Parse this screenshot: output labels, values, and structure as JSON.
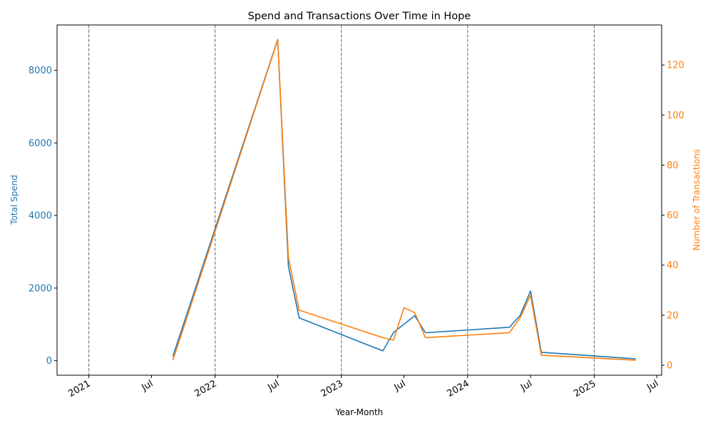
{
  "chart_data": {
    "type": "line",
    "title": "Spend and Transactions Over Time in Hope",
    "xlabel": "Year-Month",
    "ylabel_left": "Total Spend",
    "ylabel_right": "Number of Transactions",
    "xlim": [
      "2020-10-01",
      "2025-07-15"
    ],
    "ylim_left": [
      -400,
      9250
    ],
    "ylim_right": [
      -4,
      136
    ],
    "yticks_left": [
      0,
      2000,
      4000,
      6000,
      8000
    ],
    "yticks_right": [
      0,
      20,
      40,
      60,
      80,
      100,
      120
    ],
    "xticks": [
      {
        "date": "2021-01-01",
        "label": "2021"
      },
      {
        "date": "2021-07-01",
        "label": "Jul"
      },
      {
        "date": "2022-01-01",
        "label": "2022"
      },
      {
        "date": "2022-07-01",
        "label": "Jul"
      },
      {
        "date": "2023-01-01",
        "label": "2023"
      },
      {
        "date": "2023-07-01",
        "label": "Jul"
      },
      {
        "date": "2024-01-01",
        "label": "2024"
      },
      {
        "date": "2024-07-01",
        "label": "Jul"
      },
      {
        "date": "2025-01-01",
        "label": "2025"
      },
      {
        "date": "2025-07-01",
        "label": "Jul"
      }
    ],
    "vlines": [
      "2021-01-01",
      "2022-01-01",
      "2023-01-01",
      "2024-01-01",
      "2025-01-01"
    ],
    "colors": {
      "spend": "#1f77b4",
      "transactions": "#ff7f0e",
      "vline": "#808080"
    },
    "series": [
      {
        "axis": "left",
        "color": "#1f77b4",
        "points": [
          [
            "2021-09-01",
            120
          ],
          [
            "2022-07-01",
            8850
          ],
          [
            "2022-08-01",
            2600
          ],
          [
            "2022-09-01",
            1180
          ],
          [
            "2023-05-01",
            270
          ],
          [
            "2023-06-01",
            780
          ],
          [
            "2023-08-01",
            1240
          ],
          [
            "2023-09-01",
            770
          ],
          [
            "2024-05-01",
            920
          ],
          [
            "2024-06-01",
            1250
          ],
          [
            "2024-07-01",
            1920
          ],
          [
            "2024-08-01",
            230
          ],
          [
            "2025-05-01",
            50
          ]
        ]
      },
      {
        "axis": "right",
        "color": "#ff7f0e",
        "points": [
          [
            "2021-09-01",
            2
          ],
          [
            "2022-07-01",
            130
          ],
          [
            "2022-08-01",
            43
          ],
          [
            "2022-09-01",
            22
          ],
          [
            "2023-05-01",
            11
          ],
          [
            "2023-06-01",
            10
          ],
          [
            "2023-07-01",
            23
          ],
          [
            "2023-08-01",
            21
          ],
          [
            "2023-09-01",
            11
          ],
          [
            "2024-05-01",
            13
          ],
          [
            "2024-06-01",
            19
          ],
          [
            "2024-07-01",
            28
          ],
          [
            "2024-08-01",
            4
          ],
          [
            "2025-05-01",
            2
          ]
        ]
      }
    ]
  }
}
